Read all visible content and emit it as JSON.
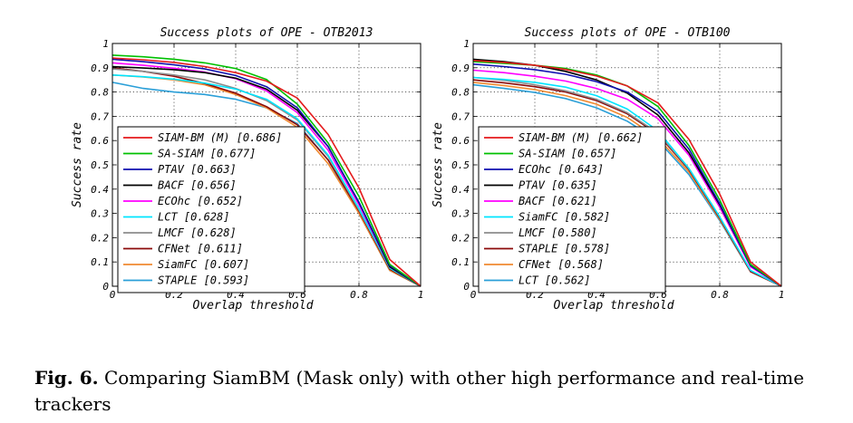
{
  "chart_data": [
    {
      "type": "line",
      "title": "Success plots of OPE - OTB2013",
      "xlabel": "Overlap threshold",
      "ylabel": "Success rate",
      "xlim": [
        0,
        1
      ],
      "ylim": [
        0,
        1
      ],
      "grid": true,
      "legend": "bottom-left",
      "x": [
        0,
        0.1,
        0.2,
        0.3,
        0.4,
        0.5,
        0.6,
        0.7,
        0.8,
        0.9,
        1.0
      ],
      "xticks": [
        "0",
        "0.2",
        "0.4",
        "0.6",
        "0.8",
        "1"
      ],
      "yticks": [
        "0",
        "0.1",
        "0.2",
        "0.3",
        "0.4",
        "0.5",
        "0.6",
        "0.7",
        "0.8",
        "0.9",
        "1"
      ],
      "series": [
        {
          "name": "SIAM-BM (M) [0.686]",
          "color": "#e41a1c",
          "values": [
            0.94,
            0.933,
            0.922,
            0.905,
            0.88,
            0.845,
            0.775,
            0.625,
            0.405,
            0.11,
            0.0
          ]
        },
        {
          "name": "SA-SIAM [0.677]",
          "color": "#00c000",
          "values": [
            0.952,
            0.945,
            0.935,
            0.92,
            0.897,
            0.852,
            0.75,
            0.59,
            0.37,
            0.09,
            0.0
          ]
        },
        {
          "name": "PTAV [0.663]",
          "color": "#1010b0",
          "values": [
            0.935,
            0.925,
            0.912,
            0.895,
            0.868,
            0.822,
            0.735,
            0.575,
            0.345,
            0.085,
            0.0
          ]
        },
        {
          "name": "BACF [0.656]",
          "color": "#000000",
          "values": [
            0.905,
            0.899,
            0.892,
            0.88,
            0.857,
            0.812,
            0.725,
            0.575,
            0.345,
            0.08,
            0.0
          ]
        },
        {
          "name": "ECOhc [0.652]",
          "color": "#ff00ff",
          "values": [
            0.92,
            0.91,
            0.898,
            0.882,
            0.855,
            0.805,
            0.715,
            0.56,
            0.335,
            0.08,
            0.0
          ]
        },
        {
          "name": "LCT [0.628]",
          "color": "#00e5ff",
          "values": [
            0.87,
            0.863,
            0.853,
            0.837,
            0.812,
            0.77,
            0.69,
            0.54,
            0.32,
            0.075,
            0.0
          ]
        },
        {
          "name": "LMCF [0.628]",
          "color": "#8c8c8c",
          "values": [
            0.895,
            0.885,
            0.87,
            0.85,
            0.815,
            0.765,
            0.685,
            0.535,
            0.315,
            0.075,
            0.0
          ]
        },
        {
          "name": "CFNet [0.611]",
          "color": "#8b0a0a",
          "values": [
            0.9,
            0.885,
            0.865,
            0.835,
            0.795,
            0.74,
            0.665,
            0.52,
            0.31,
            0.07,
            0.0
          ]
        },
        {
          "name": "SiamFC [0.607]",
          "color": "#f08a30",
          "values": [
            0.87,
            0.862,
            0.85,
            0.83,
            0.79,
            0.735,
            0.655,
            0.505,
            0.3,
            0.065,
            0.0
          ]
        },
        {
          "name": "STAPLE [0.593]",
          "color": "#2a9fd8",
          "values": [
            0.84,
            0.815,
            0.8,
            0.79,
            0.77,
            0.735,
            0.67,
            0.52,
            0.3,
            0.065,
            0.0
          ]
        }
      ]
    },
    {
      "type": "line",
      "title": "Success plots of OPE - OTB100",
      "xlabel": "Overlap threshold",
      "ylabel": "Success rate",
      "xlim": [
        0,
        1
      ],
      "ylim": [
        0,
        1
      ],
      "grid": true,
      "legend": "bottom-left",
      "x": [
        0,
        0.1,
        0.2,
        0.3,
        0.4,
        0.5,
        0.6,
        0.7,
        0.8,
        0.9,
        1.0
      ],
      "xticks": [
        "0",
        "0.2",
        "0.4",
        "0.6",
        "0.8",
        "1"
      ],
      "yticks": [
        "0",
        "0.1",
        "0.2",
        "0.3",
        "0.4",
        "0.5",
        "0.6",
        "0.7",
        "0.8",
        "0.9",
        "1"
      ],
      "series": [
        {
          "name": "SIAM-BM (M) [0.662]",
          "color": "#e41a1c",
          "values": [
            0.93,
            0.922,
            0.91,
            0.893,
            0.866,
            0.825,
            0.755,
            0.605,
            0.38,
            0.1,
            0.0
          ]
        },
        {
          "name": "SA-SIAM [0.657]",
          "color": "#00c000",
          "values": [
            0.925,
            0.918,
            0.91,
            0.897,
            0.87,
            0.825,
            0.74,
            0.58,
            0.355,
            0.09,
            0.0
          ]
        },
        {
          "name": "ECOhc [0.643]",
          "color": "#1010b0",
          "values": [
            0.915,
            0.905,
            0.892,
            0.873,
            0.843,
            0.8,
            0.72,
            0.565,
            0.34,
            0.085,
            0.0
          ]
        },
        {
          "name": "PTAV [0.635]",
          "color": "#000000",
          "values": [
            0.935,
            0.925,
            0.91,
            0.885,
            0.85,
            0.795,
            0.705,
            0.55,
            0.335,
            0.085,
            0.0
          ]
        },
        {
          "name": "BACF [0.621]",
          "color": "#ff00ff",
          "values": [
            0.89,
            0.88,
            0.865,
            0.845,
            0.815,
            0.77,
            0.69,
            0.54,
            0.325,
            0.08,
            0.0
          ]
        },
        {
          "name": "SiamFC [0.582]",
          "color": "#00e5ff",
          "values": [
            0.86,
            0.852,
            0.84,
            0.82,
            0.785,
            0.73,
            0.64,
            0.485,
            0.285,
            0.065,
            0.0
          ]
        },
        {
          "name": "LMCF [0.580]",
          "color": "#8c8c8c",
          "values": [
            0.86,
            0.848,
            0.83,
            0.805,
            0.77,
            0.715,
            0.63,
            0.485,
            0.285,
            0.065,
            0.0
          ]
        },
        {
          "name": "STAPLE [0.578]",
          "color": "#8b0a0a",
          "values": [
            0.85,
            0.838,
            0.822,
            0.8,
            0.765,
            0.71,
            0.625,
            0.48,
            0.28,
            0.06,
            0.0
          ]
        },
        {
          "name": "CFNet [0.568]",
          "color": "#f08a30",
          "values": [
            0.84,
            0.827,
            0.81,
            0.785,
            0.75,
            0.695,
            0.61,
            0.47,
            0.275,
            0.06,
            0.0
          ]
        },
        {
          "name": "LCT [0.562]",
          "color": "#2a9fd8",
          "values": [
            0.83,
            0.815,
            0.798,
            0.773,
            0.735,
            0.68,
            0.6,
            0.46,
            0.27,
            0.06,
            0.0
          ]
        }
      ]
    }
  ],
  "caption": {
    "label": "Fig. 6.",
    "text": "Comparing SiamBM (Mask only) with other high performance and real-time trackers"
  }
}
